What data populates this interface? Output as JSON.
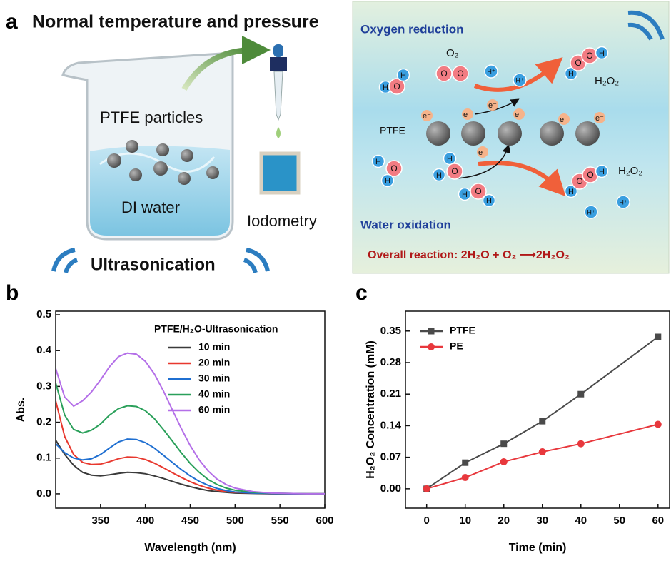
{
  "panel_a": {
    "label": "a",
    "title": "Normal temperature and pressure",
    "beaker": {
      "particles": "PTFE particles",
      "water": "DI water",
      "detection": "Iodometry",
      "method": "Ultrasonication"
    },
    "mechanism": {
      "top_title": "Oxygen reduction",
      "bottom_title": "Water oxidation",
      "o2_label": "O₂",
      "catalyst": "PTFE",
      "product_labels": [
        "H₂O₂",
        "H₂O₂"
      ],
      "protons": [
        "H⁺",
        "H⁺",
        "H⁺",
        "H⁺"
      ],
      "electrons": [
        "e⁻",
        "e⁻",
        "e⁻",
        "e⁻",
        "e⁻",
        "e⁻",
        "e⁻"
      ],
      "molecules": [
        [
          "H",
          "O",
          "H"
        ],
        [
          "O",
          "O"
        ],
        [
          "H",
          "O",
          "O",
          "H"
        ],
        [
          "H",
          "O",
          "H"
        ],
        [
          "H",
          "O",
          "H"
        ],
        [
          "H",
          "O",
          "H"
        ],
        [
          "H",
          "O",
          "O",
          "H"
        ]
      ],
      "overall": "Overall reaction:  2H₂O + O₂ ⟶2H₂O₂"
    }
  },
  "chart_data": [
    {
      "type": "line",
      "panel_label": "b",
      "x_label": "Wavelength (nm)",
      "y_label": "Abs.",
      "legend_title": "PTFE/H₂O-Ultrasonication",
      "x": [
        300,
        310,
        320,
        330,
        340,
        350,
        360,
        370,
        380,
        390,
        400,
        410,
        420,
        430,
        440,
        450,
        460,
        470,
        480,
        490,
        500,
        520,
        540,
        560,
        580,
        600
      ],
      "series": [
        {
          "name": "10 min",
          "color": "#3a3a3a",
          "values": [
            0.15,
            0.11,
            0.08,
            0.06,
            0.052,
            0.05,
            0.053,
            0.057,
            0.06,
            0.059,
            0.056,
            0.05,
            0.043,
            0.035,
            0.027,
            0.02,
            0.014,
            0.009,
            0.006,
            0.004,
            0.002,
            0.001,
            0,
            0,
            0,
            0
          ]
        },
        {
          "name": "20 min",
          "color": "#e8382e",
          "values": [
            0.26,
            0.16,
            0.11,
            0.088,
            0.082,
            0.083,
            0.09,
            0.098,
            0.103,
            0.102,
            0.096,
            0.086,
            0.073,
            0.059,
            0.046,
            0.034,
            0.024,
            0.016,
            0.01,
            0.006,
            0.004,
            0.002,
            0.001,
            0,
            0,
            0
          ]
        },
        {
          "name": "30 min",
          "color": "#1f6fd1",
          "values": [
            0.14,
            0.115,
            0.1,
            0.095,
            0.098,
            0.11,
            0.128,
            0.145,
            0.153,
            0.152,
            0.143,
            0.128,
            0.108,
            0.088,
            0.068,
            0.05,
            0.035,
            0.024,
            0.015,
            0.009,
            0.005,
            0.002,
            0.001,
            0,
            0,
            0
          ]
        },
        {
          "name": "40 min",
          "color": "#2aa05a",
          "values": [
            0.31,
            0.22,
            0.18,
            0.17,
            0.178,
            0.195,
            0.22,
            0.238,
            0.246,
            0.244,
            0.232,
            0.21,
            0.18,
            0.148,
            0.115,
            0.085,
            0.06,
            0.04,
            0.026,
            0.016,
            0.01,
            0.004,
            0.002,
            0.001,
            0,
            0
          ]
        },
        {
          "name": "60 min",
          "color": "#b46fe8",
          "values": [
            0.35,
            0.27,
            0.245,
            0.26,
            0.285,
            0.318,
            0.355,
            0.383,
            0.393,
            0.39,
            0.37,
            0.335,
            0.288,
            0.235,
            0.183,
            0.135,
            0.095,
            0.064,
            0.041,
            0.026,
            0.016,
            0.006,
            0.002,
            0.001,
            0,
            0
          ]
        }
      ],
      "xlim": [
        300,
        600
      ],
      "xticks": [
        350,
        400,
        450,
        500,
        550,
        600
      ],
      "ylim": [
        -0.04,
        0.51
      ],
      "yticks": [
        {
          "value": 0,
          "label": "0.0"
        },
        0.1,
        0.2,
        0.3,
        0.4,
        0.5
      ]
    },
    {
      "type": "line",
      "panel_label": "c",
      "x_label": "Time (min)",
      "y_label": "H₂O₂ Concentration (mM)",
      "markers": true,
      "x": [
        0,
        10,
        20,
        30,
        40,
        60
      ],
      "series": [
        {
          "name": "PTFE",
          "color": "#4a4a4a",
          "marker": "square",
          "values": [
            0,
            0.058,
            0.1,
            0.15,
            0.21,
            0.337
          ]
        },
        {
          "name": "PE",
          "color": "#e8383d",
          "marker": "circle",
          "values": [
            0,
            0.025,
            0.06,
            0.082,
            0.1,
            0.143
          ]
        }
      ],
      "xlim": [
        -5.5,
        63
      ],
      "xticks": [
        0,
        10,
        20,
        30,
        40,
        50,
        60
      ],
      "ylim": [
        -0.043,
        0.394
      ],
      "yticks": [
        {
          "value": 0,
          "label": "0.00"
        },
        0.07,
        0.14,
        0.21,
        0.28,
        0.35
      ]
    }
  ]
}
